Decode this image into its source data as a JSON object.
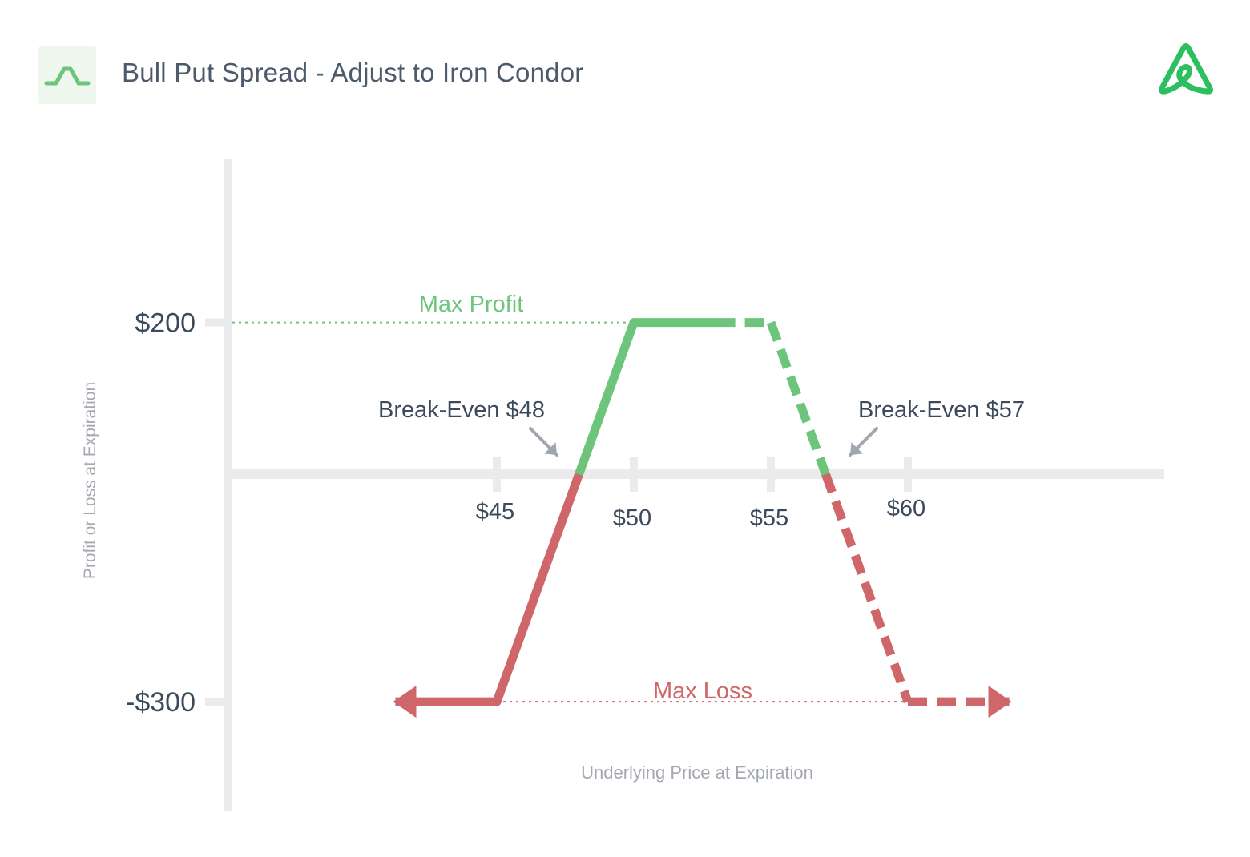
{
  "header": {
    "title": "Bull Put Spread - Adjust to Iron Condor",
    "badge_icon": "payoff-curve-icon",
    "logo_icon": "brand-logo-icon"
  },
  "colors": {
    "profit": "#6cc57a",
    "loss": "#cf6669",
    "axis": "#ebebed",
    "text": "#3d4a5b",
    "muted": "#a4a9b1",
    "arrow": "#a0a6ae"
  },
  "chart_data": {
    "type": "line",
    "xlabel": "Underlying Price at Expiration",
    "ylabel": "Profit or Loss at Expiration",
    "x_ticks": [
      {
        "value": 45,
        "label": "$45"
      },
      {
        "value": 50,
        "label": "$50"
      },
      {
        "value": 55,
        "label": "$55"
      },
      {
        "value": 60,
        "label": "$60"
      }
    ],
    "y_ticks": [
      {
        "value": 200,
        "label": "$200"
      },
      {
        "value": -300,
        "label": "-$300"
      }
    ],
    "series": [
      {
        "style": "solid",
        "points": [
          [
            41.3,
            -300
          ],
          [
            45,
            -300
          ],
          [
            50,
            200
          ],
          [
            53,
            200
          ]
        ]
      },
      {
        "style": "dashed",
        "points": [
          [
            53,
            200
          ],
          [
            55,
            200
          ],
          [
            60,
            -300
          ],
          [
            63.7,
            -300
          ]
        ]
      }
    ],
    "annotations": {
      "max_profit": {
        "label": "Max Profit",
        "value": 200
      },
      "max_loss": {
        "label": "Max Loss",
        "value": -300
      },
      "break_even_low": {
        "label": "Break-Even $48",
        "value": 48
      },
      "break_even_high": {
        "label": "Break-Even $57",
        "value": 57
      }
    }
  }
}
